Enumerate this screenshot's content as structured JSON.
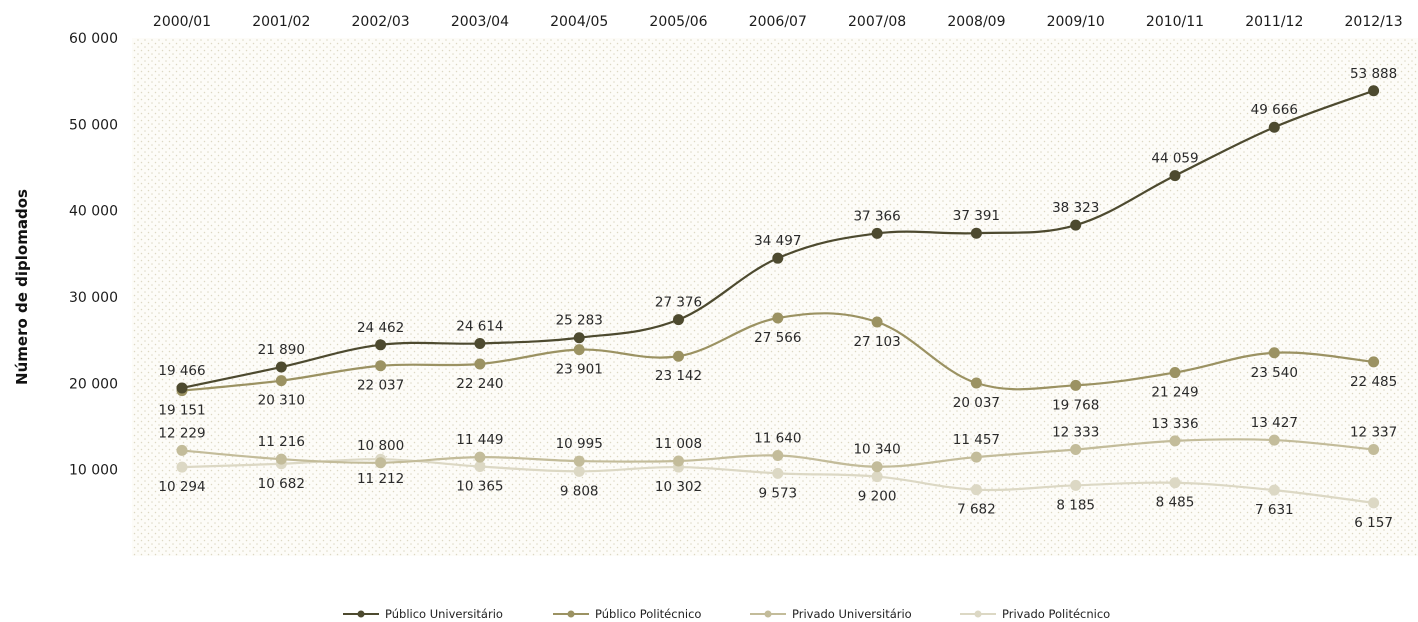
{
  "chart_data": {
    "type": "line",
    "ylabel": "Número de diplomados",
    "ylim": [
      0,
      60000
    ],
    "yticks": [
      10000,
      20000,
      30000,
      40000,
      50000,
      60000
    ],
    "ytick_labels": [
      "10 000",
      "20 000",
      "30 000",
      "40 000",
      "50 000",
      "60 000"
    ],
    "categories": [
      "2000/01",
      "2001/02",
      "2002/03",
      "2003/04",
      "2004/05",
      "2005/06",
      "2006/07",
      "2007/08",
      "2008/09",
      "2009/10",
      "2010/11",
      "2011/12",
      "2012/13"
    ],
    "grid": false,
    "background": "dotted",
    "legend_position": "bottom",
    "series": [
      {
        "name": "Público Universitário",
        "color": "#4d4a2f",
        "values": [
          19466,
          21890,
          24462,
          24614,
          25283,
          27376,
          34497,
          37366,
          37391,
          38323,
          44059,
          49666,
          53888
        ],
        "labels": [
          "19 466",
          "21 890",
          "24 462",
          "24 614",
          "25 283",
          "27 376",
          "34 497",
          "37 366",
          "37 391",
          "38 323",
          "44 059",
          "49 666",
          "53 888"
        ]
      },
      {
        "name": "Público Politécnico",
        "color": "#9b9262",
        "values": [
          19151,
          20310,
          22037,
          22240,
          23901,
          23142,
          27566,
          27103,
          20037,
          19768,
          21249,
          23540,
          22485
        ],
        "labels": [
          "19 151",
          "20 310",
          "22 037",
          "22 240",
          "23 901",
          "23 142",
          "27 566",
          "27 103",
          "20 037",
          "19 768",
          "21 249",
          "23 540",
          "22 485"
        ]
      },
      {
        "name": "Privado Universitário",
        "color": "#c3bc9a",
        "values": [
          12229,
          11216,
          10800,
          11449,
          10995,
          11008,
          11640,
          10340,
          11457,
          12333,
          13336,
          13427,
          12337
        ],
        "labels": [
          "12 229",
          "11 216",
          "10 800",
          "11 449",
          "10 995",
          "11 008",
          "11 640",
          "10 340",
          "11 457",
          "12 333",
          "13 336",
          "13 427",
          "12 337"
        ]
      },
      {
        "name": "Privado Politécnico",
        "color": "#dcd8c4",
        "values": [
          10294,
          10682,
          11212,
          10365,
          9808,
          10302,
          9573,
          9200,
          7682,
          8185,
          8485,
          7631,
          6157
        ],
        "labels": [
          "10 294",
          "10 682",
          "11 212",
          "10 365",
          "9 808",
          "10 302",
          "9 573",
          "9 200",
          "7 682",
          "8 185",
          "8 485",
          "7 631",
          "6 157"
        ]
      }
    ]
  }
}
